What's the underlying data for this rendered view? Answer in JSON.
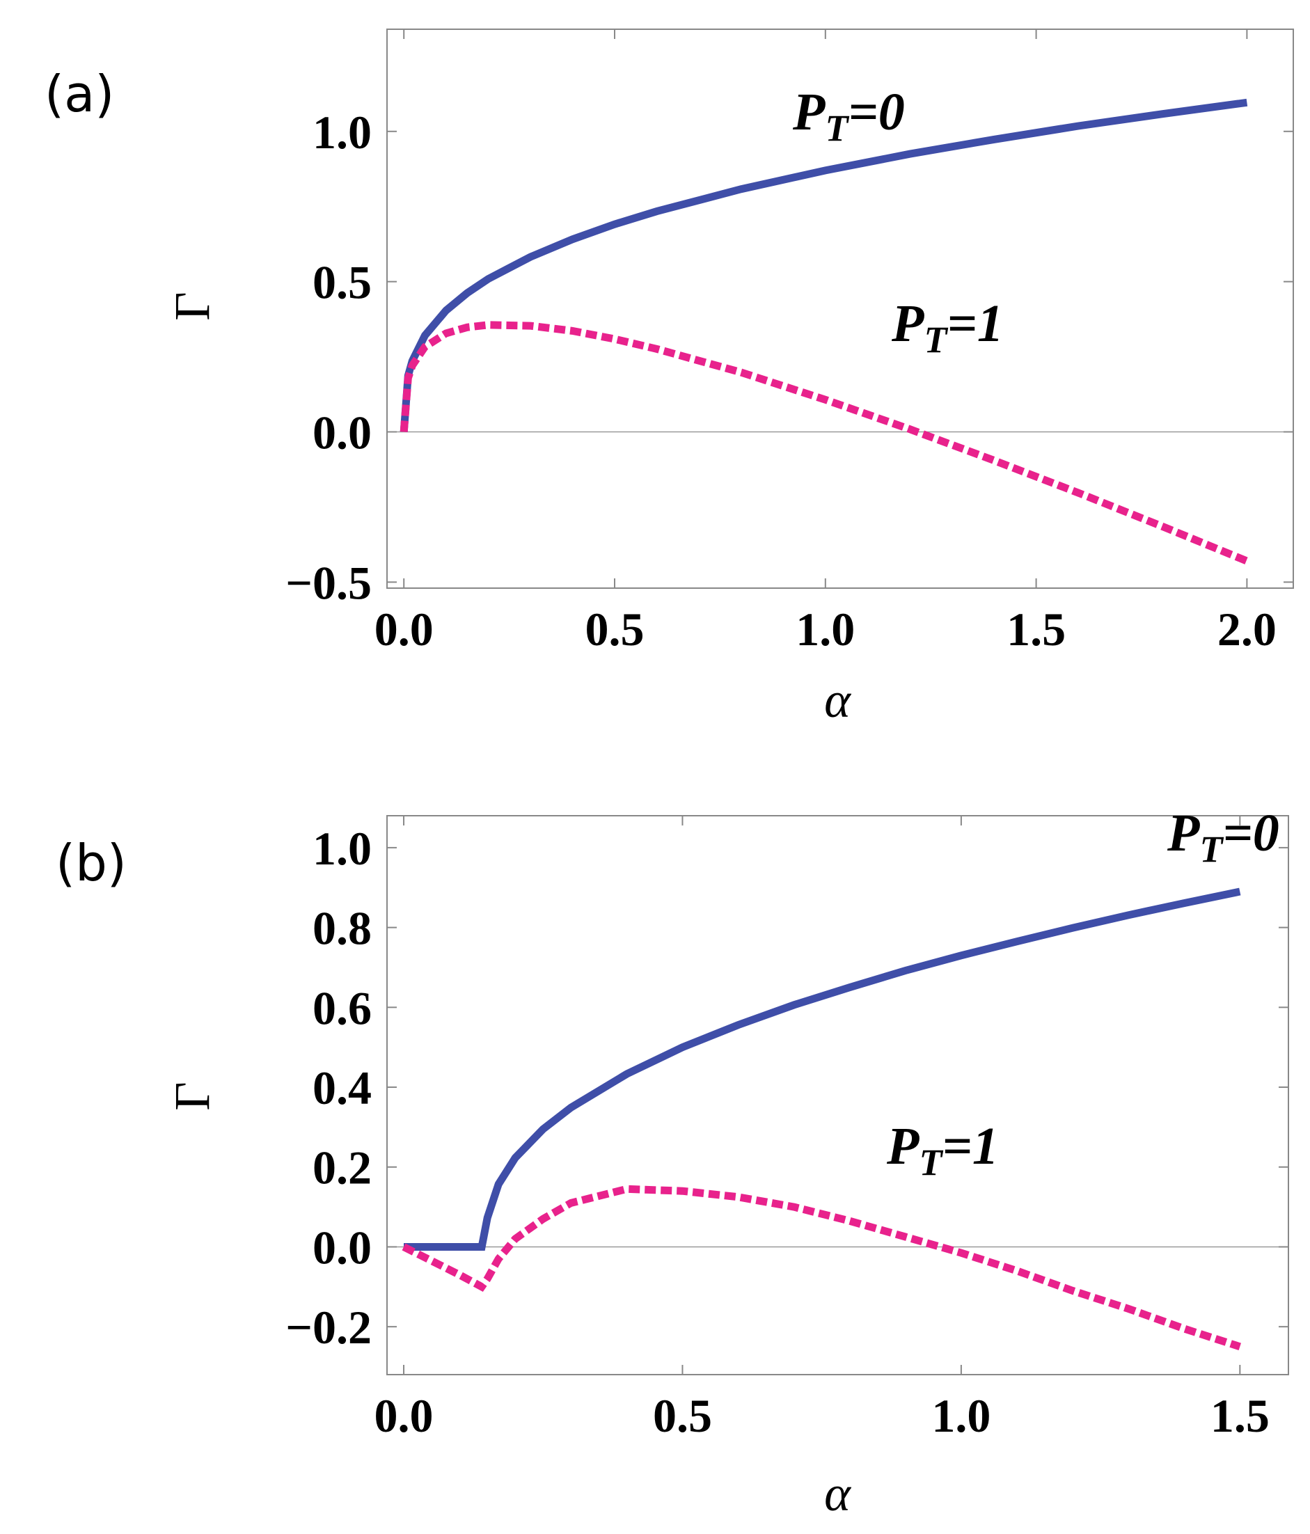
{
  "chart_data": [
    {
      "type": "line",
      "panel_label": "(a)",
      "xlabel": "α",
      "ylabel": "Γ",
      "x": [
        0,
        0.01,
        0.02,
        0.05,
        0.1,
        0.15,
        0.2,
        0.3,
        0.4,
        0.5,
        0.6,
        0.8,
        1.0,
        1.2,
        1.4,
        1.6,
        1.8,
        2.0
      ],
      "series": [
        {
          "name": "PT=0",
          "color": "#3f4ea8",
          "dash": false,
          "values": [
            0,
            0.187,
            0.236,
            0.321,
            0.404,
            0.462,
            0.509,
            0.582,
            0.641,
            0.691,
            0.734,
            0.808,
            0.87,
            0.925,
            0.973,
            1.018,
            1.058,
            1.096
          ]
        },
        {
          "name": "PT=1",
          "color": "#e8228c",
          "dash": true,
          "values": [
            0,
            0.179,
            0.221,
            0.283,
            0.328,
            0.348,
            0.356,
            0.353,
            0.336,
            0.309,
            0.276,
            0.198,
            0.107,
            0.009,
            -0.095,
            -0.203,
            -0.315,
            -0.43
          ]
        }
      ],
      "xlim": [
        -0.04,
        2.11
      ],
      "ylim": [
        -0.52,
        1.34
      ],
      "xticks": [
        {
          "value": 0,
          "label": "0.0"
        },
        0.5,
        {
          "value": 1,
          "label": "1.0"
        },
        1.5,
        {
          "value": 2,
          "label": "2.0"
        }
      ],
      "yticks": [
        {
          "value": -0.5,
          "label": "−0.5"
        },
        {
          "value": 0,
          "label": "0.0"
        },
        0.5,
        {
          "value": 1,
          "label": "1.0"
        }
      ]
    },
    {
      "type": "line",
      "panel_label": "(b)",
      "xlabel": "α",
      "ylabel": "Γ",
      "x": [
        0,
        0.05,
        0.1,
        0.14,
        0.15,
        0.17,
        0.2,
        0.25,
        0.3,
        0.4,
        0.5,
        0.6,
        0.7,
        0.8,
        0.9,
        1.0,
        1.1,
        1.2,
        1.3,
        1.4,
        1.5
      ],
      "series": [
        {
          "name": "PT=0",
          "color": "#3f4ea8",
          "dash": false,
          "values": [
            0,
            0,
            0,
            0,
            0.073,
            0.157,
            0.223,
            0.295,
            0.349,
            0.433,
            0.5,
            0.556,
            0.606,
            0.65,
            0.692,
            0.73,
            0.765,
            0.799,
            0.831,
            0.861,
            0.89
          ]
        },
        {
          "name": "PT=1",
          "color": "#e8228c",
          "dash": true,
          "values": [
            0,
            -0.035,
            -0.07,
            -0.1,
            -0.08,
            -0.03,
            0.02,
            0.07,
            0.11,
            0.145,
            0.14,
            0.125,
            0.1,
            0.065,
            0.025,
            -0.015,
            -0.06,
            -0.11,
            -0.155,
            -0.205,
            -0.25
          ]
        }
      ],
      "xlim": [
        -0.03,
        1.587
      ],
      "ylim": [
        -0.32,
        1.08
      ],
      "xticks": [
        {
          "value": 0,
          "label": "0.0"
        },
        0.5,
        {
          "value": 1,
          "label": "1.0"
        },
        1.5
      ],
      "yticks": [
        {
          "value": -0.2,
          "label": "−0.2"
        },
        {
          "value": 0,
          "label": "0.0"
        },
        0.2,
        0.4,
        0.6,
        0.8,
        {
          "value": 1,
          "label": "1.0"
        }
      ]
    }
  ]
}
